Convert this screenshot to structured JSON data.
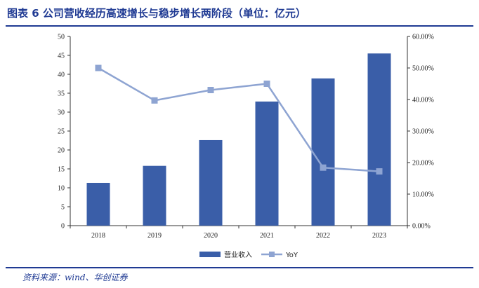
{
  "figure": {
    "title": "图表 6   公司营收经历高速增长与稳步增长两阶段（单位：亿元）",
    "source": "资料来源：wind、华创证券"
  },
  "colors": {
    "title": "#1f3a93",
    "bar": "#3a5ea8",
    "line": "#8ea4d2"
  },
  "chart_data": {
    "type": "bar",
    "categories": [
      "2018",
      "2019",
      "2020",
      "2021",
      "2022",
      "2023"
    ],
    "series": [
      {
        "name": "营业收入",
        "type": "bar",
        "axis": "left",
        "values": [
          11.3,
          15.8,
          22.6,
          32.8,
          38.9,
          45.5
        ]
      },
      {
        "name": "YoY",
        "type": "line",
        "axis": "right",
        "values": [
          0.5,
          0.397,
          0.43,
          0.45,
          0.184,
          0.172
        ]
      }
    ],
    "ylim_left": [
      0,
      50
    ],
    "yticks_left": [
      "0",
      "5",
      "10",
      "15",
      "20",
      "25",
      "30",
      "35",
      "40",
      "45",
      "50"
    ],
    "ylim_right": [
      0,
      0.6
    ],
    "yticks_right": [
      "0.00%",
      "10.00%",
      "20.00%",
      "30.00%",
      "40.00%",
      "50.00%",
      "60.00%"
    ],
    "legend_position": "bottom-center",
    "grid": false
  }
}
